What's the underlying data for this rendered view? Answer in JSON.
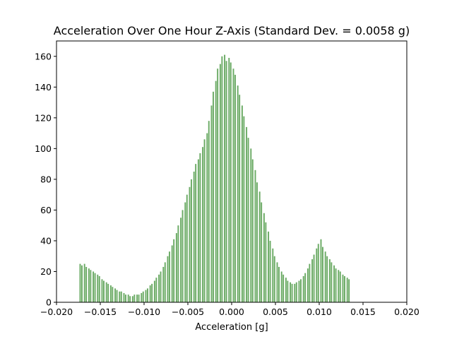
{
  "chart_data": {
    "type": "bar",
    "title": "Acceleration Over One Hour Z-Axis (Standard Dev. = 0.0058 g)",
    "xlabel": "Acceleration [g]",
    "ylabel": "",
    "xlim": [
      -0.02,
      0.02
    ],
    "ylim": [
      0,
      170
    ],
    "x_ticks": [
      -0.02,
      -0.015,
      -0.01,
      -0.005,
      0.0,
      0.005,
      0.01,
      0.015,
      0.02
    ],
    "x_tick_labels": [
      "−0.020",
      "−0.015",
      "−0.010",
      "−0.005",
      "0.000",
      "0.005",
      "0.010",
      "0.015",
      "0.020"
    ],
    "y_ticks": [
      0,
      20,
      40,
      60,
      80,
      100,
      120,
      140,
      160
    ],
    "y_tick_labels": [
      "0",
      "20",
      "40",
      "60",
      "80",
      "100",
      "120",
      "140",
      "160"
    ],
    "bar_color": "#6aaa64",
    "bin_width": 0.00025,
    "x": [
      -0.0173,
      -0.0171,
      -0.0168,
      -0.0166,
      -0.0163,
      -0.0161,
      -0.0158,
      -0.0156,
      -0.0153,
      -0.0151,
      -0.0148,
      -0.0146,
      -0.0143,
      -0.0141,
      -0.0138,
      -0.0136,
      -0.0133,
      -0.0131,
      -0.0128,
      -0.0126,
      -0.0123,
      -0.0121,
      -0.0118,
      -0.0116,
      -0.0113,
      -0.0111,
      -0.0108,
      -0.0106,
      -0.0103,
      -0.0101,
      -0.0098,
      -0.0096,
      -0.0093,
      -0.0091,
      -0.0088,
      -0.0086,
      -0.0083,
      -0.0081,
      -0.0078,
      -0.0076,
      -0.0073,
      -0.0071,
      -0.0068,
      -0.0066,
      -0.0063,
      -0.0061,
      -0.0058,
      -0.0056,
      -0.0053,
      -0.0051,
      -0.0048,
      -0.0046,
      -0.0043,
      -0.0041,
      -0.0038,
      -0.0036,
      -0.0033,
      -0.0031,
      -0.0028,
      -0.0026,
      -0.0023,
      -0.0021,
      -0.0018,
      -0.0016,
      -0.0013,
      -0.0011,
      -0.0008,
      -0.0006,
      -0.0003,
      -0.0001,
      0.0002,
      0.0004,
      0.0007,
      0.0009,
      0.0012,
      0.0014,
      0.0017,
      0.0019,
      0.0022,
      0.0024,
      0.0027,
      0.0029,
      0.0032,
      0.0034,
      0.0037,
      0.0039,
      0.0042,
      0.0044,
      0.0047,
      0.0049,
      0.0052,
      0.0054,
      0.0057,
      0.0059,
      0.0062,
      0.0064,
      0.0067,
      0.0069,
      0.0072,
      0.0074,
      0.0077,
      0.0079,
      0.0082,
      0.0084,
      0.0087,
      0.0089,
      0.0092,
      0.0094,
      0.0097,
      0.0099,
      0.0102,
      0.0104,
      0.0107,
      0.0109,
      0.0112,
      0.0114,
      0.0117,
      0.0119,
      0.0122,
      0.0124,
      0.0127,
      0.0129,
      0.0132,
      0.0134
    ],
    "values": [
      25,
      24,
      25,
      23,
      22,
      21,
      20,
      19,
      18,
      17,
      15,
      14,
      13,
      12,
      11,
      10,
      9,
      8,
      7,
      7,
      6,
      5,
      5,
      4,
      4,
      5,
      5,
      5,
      6,
      7,
      8,
      9,
      11,
      12,
      14,
      16,
      18,
      20,
      23,
      26,
      30,
      33,
      37,
      41,
      45,
      50,
      55,
      60,
      65,
      70,
      75,
      80,
      85,
      90,
      93,
      97,
      101,
      106,
      110,
      118,
      128,
      137,
      144,
      152,
      155,
      160,
      161,
      157,
      159,
      156,
      152,
      148,
      141,
      135,
      128,
      121,
      114,
      107,
      100,
      93,
      86,
      78,
      72,
      65,
      58,
      52,
      46,
      40,
      35,
      30,
      26,
      23,
      20,
      18,
      16,
      14,
      13,
      12,
      12,
      13,
      14,
      15,
      17,
      19,
      22,
      25,
      28,
      31,
      35,
      38,
      41,
      36,
      33,
      30,
      28,
      26,
      24,
      22,
      21,
      20,
      18,
      17,
      16,
      15
    ]
  }
}
